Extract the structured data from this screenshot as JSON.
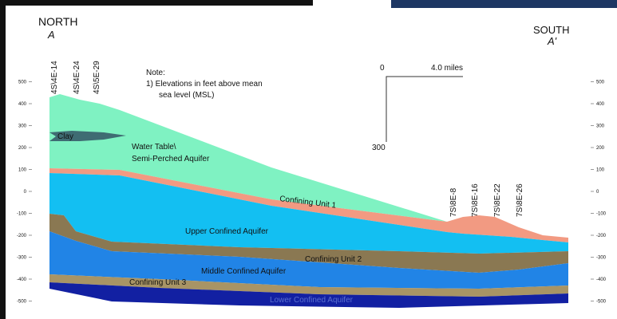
{
  "header": {
    "north": "NORTH",
    "north_mark": "A",
    "south": "SOUTH",
    "south_mark": "A'"
  },
  "wells_north": [
    "4S\\4E-14",
    "4S\\4E-24",
    "4S\\5E-29"
  ],
  "wells_south": [
    "7S\\8E-8",
    "7S\\8E-16",
    "7S\\8E-22",
    "7S\\8E-26"
  ],
  "note": {
    "title": "Note:",
    "line1": "1)  Elevations in feet above mean",
    "line2": "sea level (MSL)"
  },
  "scale": {
    "origin": "0",
    "horizontal": "4.0 miles",
    "vertical": "300"
  },
  "layers": {
    "clay": "Clay",
    "water_table_1": "Water Table\\",
    "water_table_2": "Semi-Perched Aquifer",
    "confining_1": "Confining Unit 1",
    "upper": "Upper Confined Aquifer",
    "confining_2": "Confining Unit 2",
    "middle": "Middle Confined Aquifer",
    "confining_3": "Confining Unit 3",
    "lower": "Lower Confined Aquifer"
  },
  "elevation_ticks": [
    500,
    400,
    300,
    200,
    100,
    0,
    -100,
    -200,
    -300,
    -400,
    -500
  ]
}
